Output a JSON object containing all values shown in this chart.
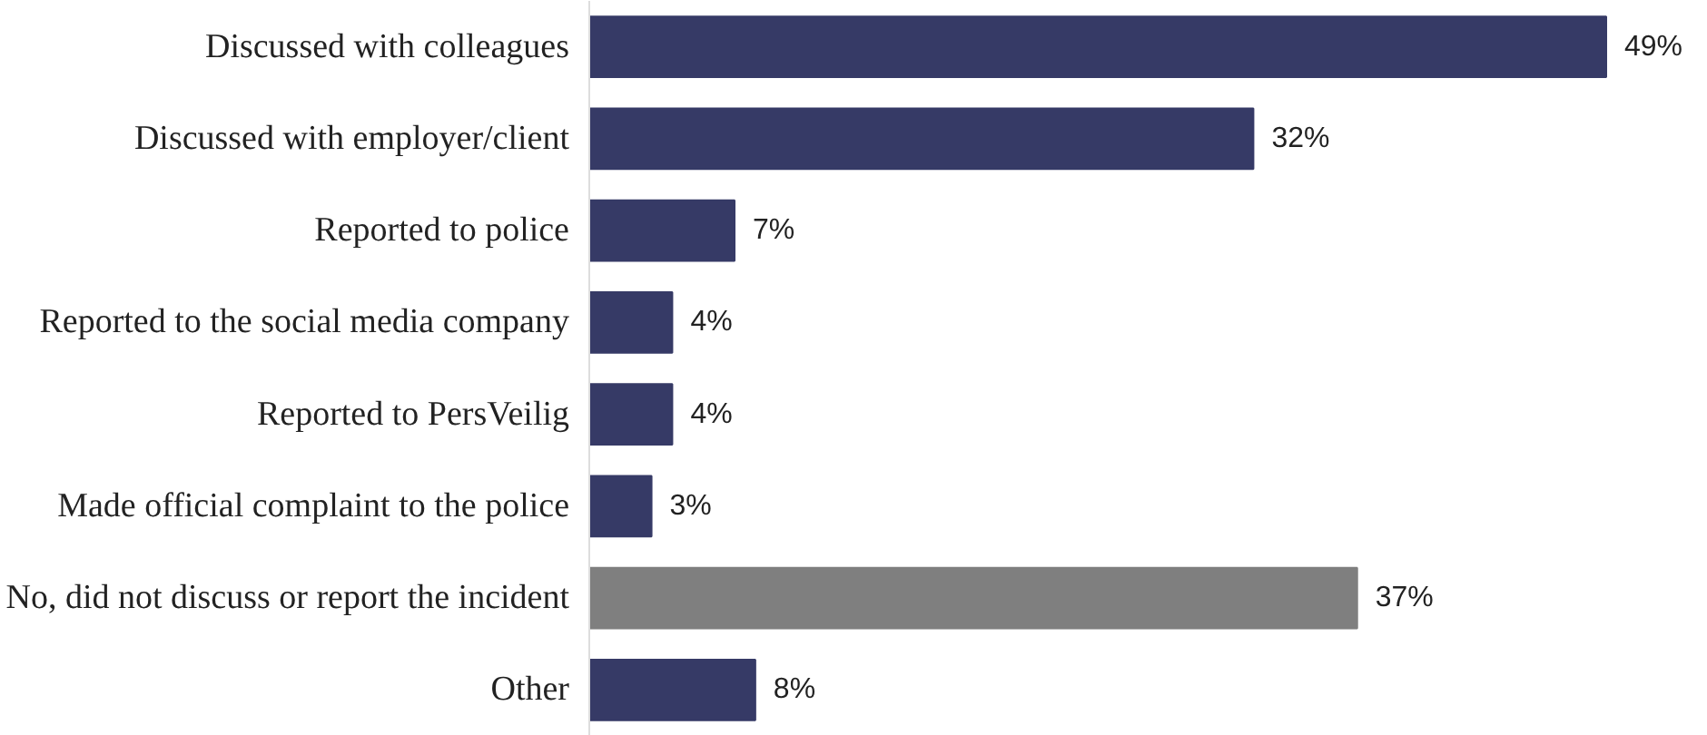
{
  "chart_data": {
    "type": "bar",
    "orientation": "horizontal",
    "categories": [
      "Discussed with colleagues",
      "Discussed with employer/client",
      "Reported to police",
      "Reported to the social media company",
      "Reported to PersVeilig",
      "Made official complaint to the police",
      "No, did not discuss or report the incident",
      "Other"
    ],
    "values": [
      49,
      32,
      7,
      4,
      4,
      3,
      37,
      8
    ],
    "colors": [
      "#363a66",
      "#363a66",
      "#363a66",
      "#363a66",
      "#363a66",
      "#363a66",
      "#7f7f7f",
      "#363a66"
    ],
    "value_labels": [
      "49%",
      "32%",
      "7%",
      "4%",
      "4%",
      "3%",
      "37%",
      "8%"
    ],
    "grid": false
  }
}
